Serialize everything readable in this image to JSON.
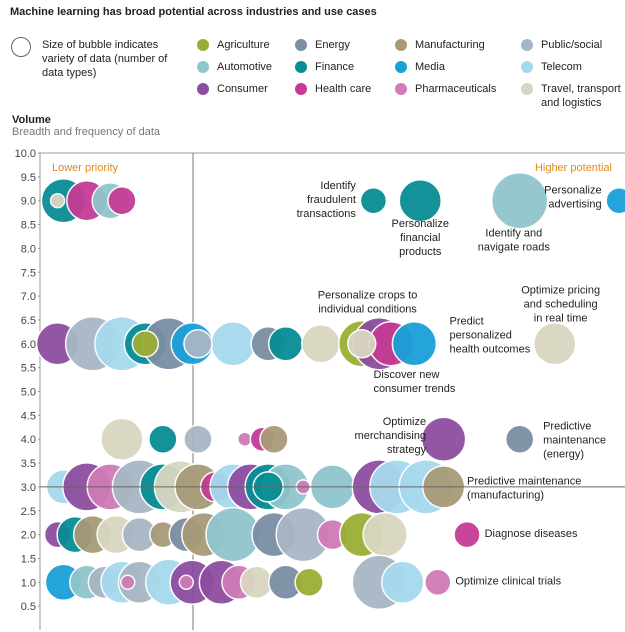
{
  "chart_data": {
    "type": "scatter",
    "title": "Machine learning has broad potential across industries and use cases",
    "ylabel": "Volume",
    "ylabel_sub": "Breadth and frequency of data",
    "ylim": [
      0,
      10.0
    ],
    "yticks": [
      "0.5",
      "1.0",
      "1.5",
      "2.0",
      "2.5",
      "3.0",
      "3.5",
      "4.0",
      "4.5",
      "5.0",
      "5.5",
      "6.0",
      "6.5",
      "7.0",
      "7.5",
      "8.0",
      "8.5",
      "9.0",
      "9.5",
      "10.0"
    ],
    "size_legend": "Size of bubble indicates variety of data (number of data types)",
    "zones": {
      "left": "Lower priority",
      "right": "Higher potential"
    },
    "legend": [
      {
        "name": "Agriculture",
        "color": "#9bae34"
      },
      {
        "name": "Energy",
        "color": "#7b8ea3"
      },
      {
        "name": "Manufacturing",
        "color": "#a89a78"
      },
      {
        "name": "Public/social",
        "color": "#a8b6c3"
      },
      {
        "name": "Automotive",
        "color": "#8fc6cc"
      },
      {
        "name": "Finance",
        "color": "#078d94"
      },
      {
        "name": "Media",
        "color": "#1aa0d8"
      },
      {
        "name": "Telecom",
        "color": "#a6d9ee"
      },
      {
        "name": "Consumer",
        "color": "#8e4da0"
      },
      {
        "name": "Health care",
        "color": "#c43c95"
      },
      {
        "name": "Pharmaceuticals",
        "color": "#cf7bb6"
      },
      {
        "name": "Travel, transport and logistics",
        "color": "#d9d6c0"
      }
    ],
    "bubbles": [
      {
        "x": 0.04,
        "y": 9.0,
        "r": 22,
        "s": "Finance"
      },
      {
        "x": 0.08,
        "y": 9.0,
        "r": 20,
        "s": "Health care"
      },
      {
        "x": 0.12,
        "y": 9.0,
        "r": 18,
        "s": "Automotive"
      },
      {
        "x": 0.14,
        "y": 9.0,
        "r": 14,
        "s": "Health care"
      },
      {
        "x": 0.03,
        "y": 9.0,
        "r": 7,
        "s": "Travel, transport and logistics"
      },
      {
        "x": 0.57,
        "y": 9.0,
        "r": 13,
        "s": "Finance"
      },
      {
        "x": 0.65,
        "y": 9.0,
        "r": 21,
        "s": "Finance"
      },
      {
        "x": 0.82,
        "y": 9.0,
        "r": 28,
        "s": "Automotive"
      },
      {
        "x": 0.99,
        "y": 9.0,
        "r": 13,
        "s": "Media"
      },
      {
        "x": 0.03,
        "y": 6.0,
        "r": 21,
        "s": "Consumer"
      },
      {
        "x": 0.09,
        "y": 6.0,
        "r": 27,
        "s": "Public/social"
      },
      {
        "x": 0.14,
        "y": 6.0,
        "r": 27,
        "s": "Telecom"
      },
      {
        "x": 0.18,
        "y": 6.0,
        "r": 21,
        "s": "Finance"
      },
      {
        "x": 0.22,
        "y": 6.0,
        "r": 26,
        "s": "Energy"
      },
      {
        "x": 0.26,
        "y": 6.0,
        "r": 21,
        "s": "Media"
      },
      {
        "x": 0.33,
        "y": 6.0,
        "r": 22,
        "s": "Telecom"
      },
      {
        "x": 0.27,
        "y": 6.0,
        "r": 14,
        "s": "Public/social"
      },
      {
        "x": 0.18,
        "y": 6.0,
        "r": 13,
        "s": "Agriculture"
      },
      {
        "x": 0.39,
        "y": 6.0,
        "r": 17,
        "s": "Energy"
      },
      {
        "x": 0.42,
        "y": 6.0,
        "r": 17,
        "s": "Finance"
      },
      {
        "x": 0.48,
        "y": 6.0,
        "r": 19,
        "s": "Travel, transport and logistics"
      },
      {
        "x": 0.55,
        "y": 6.0,
        "r": 23,
        "s": "Agriculture"
      },
      {
        "x": 0.58,
        "y": 6.0,
        "r": 26,
        "s": "Consumer"
      },
      {
        "x": 0.6,
        "y": 6.0,
        "r": 22,
        "s": "Health care"
      },
      {
        "x": 0.64,
        "y": 6.0,
        "r": 22,
        "s": "Media"
      },
      {
        "x": 0.55,
        "y": 6.0,
        "r": 14,
        "s": "Travel, transport and logistics"
      },
      {
        "x": 0.88,
        "y": 6.0,
        "r": 21,
        "s": "Travel, transport and logistics"
      },
      {
        "x": 0.14,
        "y": 4.0,
        "r": 21,
        "s": "Travel, transport and logistics"
      },
      {
        "x": 0.21,
        "y": 4.0,
        "r": 14,
        "s": "Finance"
      },
      {
        "x": 0.27,
        "y": 4.0,
        "r": 14,
        "s": "Public/social"
      },
      {
        "x": 0.35,
        "y": 4.0,
        "r": 7,
        "s": "Pharmaceuticals"
      },
      {
        "x": 0.38,
        "y": 4.0,
        "r": 12,
        "s": "Health care"
      },
      {
        "x": 0.4,
        "y": 4.0,
        "r": 14,
        "s": "Manufacturing"
      },
      {
        "x": 0.69,
        "y": 4.0,
        "r": 22,
        "s": "Consumer"
      },
      {
        "x": 0.82,
        "y": 4.0,
        "r": 14,
        "s": "Energy"
      },
      {
        "x": 0.04,
        "y": 3.0,
        "r": 17,
        "s": "Telecom"
      },
      {
        "x": 0.08,
        "y": 3.0,
        "r": 24,
        "s": "Consumer"
      },
      {
        "x": 0.12,
        "y": 3.0,
        "r": 23,
        "s": "Pharmaceuticals"
      },
      {
        "x": 0.17,
        "y": 3.0,
        "r": 27,
        "s": "Public/social"
      },
      {
        "x": 0.21,
        "y": 3.0,
        "r": 23,
        "s": "Finance"
      },
      {
        "x": 0.24,
        "y": 3.0,
        "r": 26,
        "s": "Travel, transport and logistics"
      },
      {
        "x": 0.27,
        "y": 3.0,
        "r": 23,
        "s": "Manufacturing"
      },
      {
        "x": 0.3,
        "y": 3.0,
        "r": 15,
        "s": "Health care"
      },
      {
        "x": 0.33,
        "y": 3.0,
        "r": 23,
        "s": "Telecom"
      },
      {
        "x": 0.36,
        "y": 3.0,
        "r": 23,
        "s": "Consumer"
      },
      {
        "x": 0.39,
        "y": 3.0,
        "r": 23,
        "s": "Finance"
      },
      {
        "x": 0.42,
        "y": 3.0,
        "r": 23,
        "s": "Automotive"
      },
      {
        "x": 0.45,
        "y": 3.0,
        "r": 7,
        "s": "Pharmaceuticals"
      },
      {
        "x": 0.5,
        "y": 3.0,
        "r": 22,
        "s": "Automotive"
      },
      {
        "x": 0.58,
        "y": 3.0,
        "r": 27,
        "s": "Consumer"
      },
      {
        "x": 0.61,
        "y": 3.0,
        "r": 27,
        "s": "Telecom"
      },
      {
        "x": 0.66,
        "y": 3.0,
        "r": 27,
        "s": "Telecom"
      },
      {
        "x": 0.69,
        "y": 3.0,
        "r": 21,
        "s": "Manufacturing"
      },
      {
        "x": 0.39,
        "y": 3.0,
        "r": 15,
        "s": "Finance"
      },
      {
        "x": 0.03,
        "y": 2.0,
        "r": 13,
        "s": "Consumer"
      },
      {
        "x": 0.06,
        "y": 2.0,
        "r": 18,
        "s": "Finance"
      },
      {
        "x": 0.09,
        "y": 2.0,
        "r": 19,
        "s": "Manufacturing"
      },
      {
        "x": 0.13,
        "y": 2.0,
        "r": 19,
        "s": "Travel, transport and logistics"
      },
      {
        "x": 0.17,
        "y": 2.0,
        "r": 17,
        "s": "Public/social"
      },
      {
        "x": 0.21,
        "y": 2.0,
        "r": 13,
        "s": "Manufacturing"
      },
      {
        "x": 0.25,
        "y": 2.0,
        "r": 17,
        "s": "Energy"
      },
      {
        "x": 0.28,
        "y": 2.0,
        "r": 22,
        "s": "Manufacturing"
      },
      {
        "x": 0.33,
        "y": 2.0,
        "r": 27,
        "s": "Automotive"
      },
      {
        "x": 0.4,
        "y": 2.0,
        "r": 22,
        "s": "Energy"
      },
      {
        "x": 0.45,
        "y": 2.0,
        "r": 27,
        "s": "Public/social"
      },
      {
        "x": 0.5,
        "y": 2.0,
        "r": 15,
        "s": "Pharmaceuticals"
      },
      {
        "x": 0.55,
        "y": 2.0,
        "r": 22,
        "s": "Agriculture"
      },
      {
        "x": 0.59,
        "y": 2.0,
        "r": 22,
        "s": "Travel, transport and logistics"
      },
      {
        "x": 0.73,
        "y": 2.0,
        "r": 13,
        "s": "Health care"
      },
      {
        "x": 0.04,
        "y": 1.0,
        "r": 18,
        "s": "Media"
      },
      {
        "x": 0.08,
        "y": 1.0,
        "r": 17,
        "s": "Automotive"
      },
      {
        "x": 0.11,
        "y": 1.0,
        "r": 16,
        "s": "Public/social"
      },
      {
        "x": 0.14,
        "y": 1.0,
        "r": 21,
        "s": "Telecom"
      },
      {
        "x": 0.17,
        "y": 1.0,
        "r": 21,
        "s": "Public/social"
      },
      {
        "x": 0.22,
        "y": 1.0,
        "r": 23,
        "s": "Telecom"
      },
      {
        "x": 0.26,
        "y": 1.0,
        "r": 22,
        "s": "Consumer"
      },
      {
        "x": 0.31,
        "y": 1.0,
        "r": 22,
        "s": "Consumer"
      },
      {
        "x": 0.34,
        "y": 1.0,
        "r": 17,
        "s": "Pharmaceuticals"
      },
      {
        "x": 0.37,
        "y": 1.0,
        "r": 16,
        "s": "Travel, transport and logistics"
      },
      {
        "x": 0.42,
        "y": 1.0,
        "r": 17,
        "s": "Energy"
      },
      {
        "x": 0.46,
        "y": 1.0,
        "r": 14,
        "s": "Agriculture"
      },
      {
        "x": 0.58,
        "y": 1.0,
        "r": 27,
        "s": "Public/social"
      },
      {
        "x": 0.62,
        "y": 1.0,
        "r": 21,
        "s": "Telecom"
      },
      {
        "x": 0.68,
        "y": 1.0,
        "r": 13,
        "s": "Pharmaceuticals"
      },
      {
        "x": 0.15,
        "y": 1.0,
        "r": 7,
        "s": "Pharmaceuticals"
      },
      {
        "x": 0.25,
        "y": 1.0,
        "r": 7,
        "s": "Pharmaceuticals"
      }
    ],
    "annotations": [
      {
        "lines": [
          "Identify",
          "fraudulent",
          "transactions"
        ],
        "x": 0.54,
        "y": 9.25,
        "anchor": "end"
      },
      {
        "lines": [
          "Personalize",
          "financial",
          "products"
        ],
        "x": 0.65,
        "y": 8.45,
        "anchor": "middle"
      },
      {
        "lines": [
          "Identify and",
          "navigate roads"
        ],
        "x": 0.81,
        "y": 8.25,
        "anchor": "middle"
      },
      {
        "lines": [
          "Personalize",
          "advertising"
        ],
        "x": 0.96,
        "y": 9.15,
        "anchor": "end"
      },
      {
        "lines": [
          "Personalize crops to",
          "individual conditions"
        ],
        "x": 0.56,
        "y": 6.95,
        "anchor": "middle"
      },
      {
        "lines": [
          "Predict",
          "personalized",
          "health outcomes"
        ],
        "x": 0.7,
        "y": 6.4,
        "anchor": "start"
      },
      {
        "lines": [
          "Discover new",
          "consumer trends"
        ],
        "x": 0.57,
        "y": 5.28,
        "anchor": "start"
      },
      {
        "lines": [
          "Optimize pricing",
          "and scheduling",
          "in real time"
        ],
        "x": 0.89,
        "y": 7.05,
        "anchor": "middle"
      },
      {
        "lines": [
          "Optimize",
          "merchandising",
          "strategy"
        ],
        "x": 0.66,
        "y": 4.3,
        "anchor": "end"
      },
      {
        "lines": [
          "Predictive",
          "maintenance",
          "(energy)"
        ],
        "x": 0.86,
        "y": 4.2,
        "anchor": "start"
      },
      {
        "lines": [
          "Predictive maintenance",
          "(manufacturing)"
        ],
        "x": 0.73,
        "y": 3.05,
        "anchor": "start"
      },
      {
        "lines": [
          "Diagnose diseases"
        ],
        "x": 0.76,
        "y": 1.95,
        "anchor": "start"
      },
      {
        "lines": [
          "Optimize clinical trials"
        ],
        "x": 0.71,
        "y": 0.95,
        "anchor": "start"
      }
    ]
  }
}
